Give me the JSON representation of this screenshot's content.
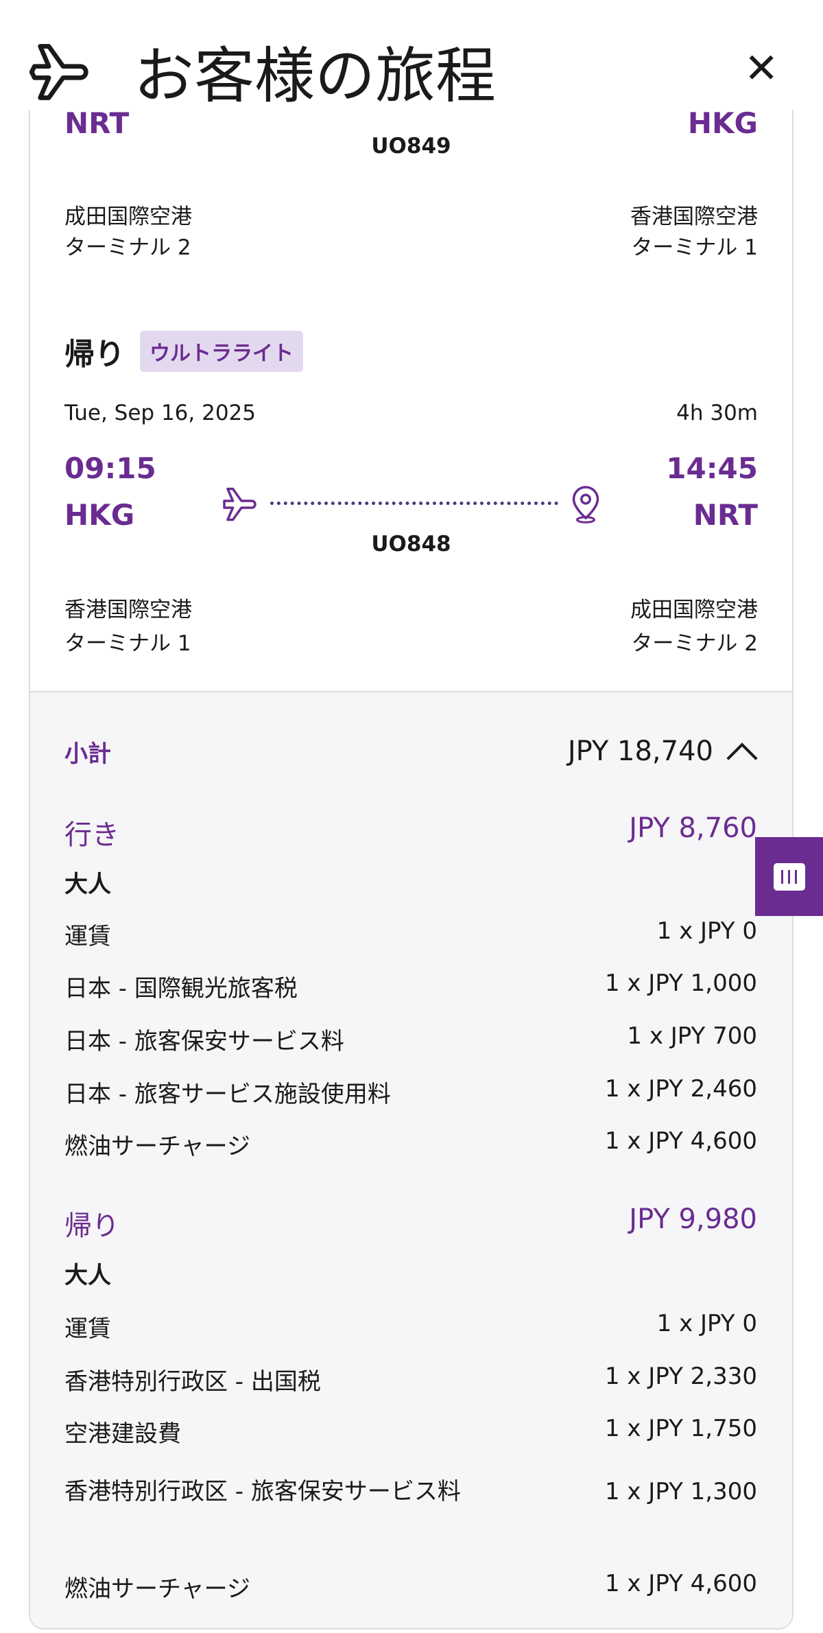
{
  "header": {
    "title": "お客様の旅程",
    "icon": "airplane-icon",
    "close_icon": "close-icon"
  },
  "outbound": {
    "from_code": "NRT",
    "to_code": "HKG",
    "flight": "UO849",
    "from_airport": "成田国際空港",
    "from_terminal": "ターミナル 2",
    "to_airport": "香港国際空港",
    "to_terminal": "ターミナル 1"
  },
  "return": {
    "label": "帰り",
    "fare_badge": "ウルトラライト",
    "date": "Tue, Sep 16, 2025",
    "duration": "4h 30m",
    "dep_time": "09:15",
    "arr_time": "14:45",
    "from_code": "HKG",
    "to_code": "NRT",
    "flight": "UO848",
    "from_airport": "香港国際空港",
    "from_terminal": "ターミナル 1",
    "to_airport": "成田国際空港",
    "to_terminal": "ターミナル 2"
  },
  "summary": {
    "subtotal_label": "小計",
    "subtotal": "JPY 18,740",
    "outbound": {
      "label": "行き",
      "total": "JPY 8,760",
      "pax": "大人",
      "items": [
        {
          "name": "運賃",
          "price": "1 x JPY 0"
        },
        {
          "name": "日本 - 国際観光旅客税",
          "price": "1 x JPY 1,000"
        },
        {
          "name": "日本 - 旅客保安サービス料",
          "price": "1 x JPY 700"
        },
        {
          "name": "日本 - 旅客サービス施設使用料",
          "price": "1 x JPY 2,460"
        },
        {
          "name": "燃油サーチャージ",
          "price": "1 x JPY 4,600"
        }
      ]
    },
    "return": {
      "label": "帰り",
      "total": "JPY 9,980",
      "pax": "大人",
      "items": [
        {
          "name": "運賃",
          "price": "1 x JPY 0"
        },
        {
          "name": "香港特別行政区 - 出国税",
          "price": "1 x JPY 2,330"
        },
        {
          "name": "空港建設費",
          "price": "1 x JPY 1,750"
        },
        {
          "name": "香港特別行政区 - 旅客保安サービス料",
          "price": "1 x JPY 1,300"
        },
        {
          "name": "燃油サーチャージ",
          "price": "1 x JPY 4,600"
        }
      ]
    }
  },
  "colors": {
    "accent": "#6a2c91",
    "badge_bg": "#e3d9ef",
    "summary_bg": "#f6f5f7"
  }
}
